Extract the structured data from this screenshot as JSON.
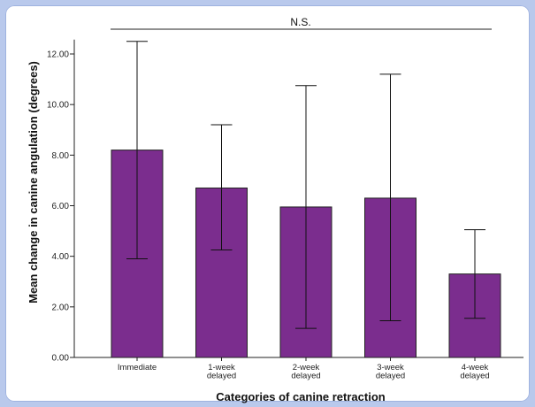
{
  "chart_data": {
    "type": "bar",
    "xlabel": "Categories of canine retraction",
    "ylabel": "Mean change in canine angulation (degrees)",
    "ylim": [
      0,
      12.5
    ],
    "yticks": [
      0,
      2,
      4,
      6,
      8,
      10,
      12
    ],
    "ytick_labels": [
      "0.00",
      "2.00",
      "4.00",
      "6.00",
      "8.00",
      "10.00",
      "12.00"
    ],
    "categories": [
      [
        "Immediate"
      ],
      [
        "1-week",
        "delayed"
      ],
      [
        "2-week",
        "delayed"
      ],
      [
        "3-week",
        "delayed"
      ],
      [
        "4-week",
        "delayed"
      ]
    ],
    "values": [
      8.2,
      6.7,
      5.95,
      6.3,
      3.3
    ],
    "error_low": [
      3.9,
      4.25,
      1.15,
      1.45,
      1.55
    ],
    "error_high": [
      12.5,
      9.2,
      10.75,
      11.2,
      5.05
    ],
    "bar_color": "#7b2d8e",
    "annotation": "N.S.",
    "grid": false,
    "legend": "none"
  }
}
